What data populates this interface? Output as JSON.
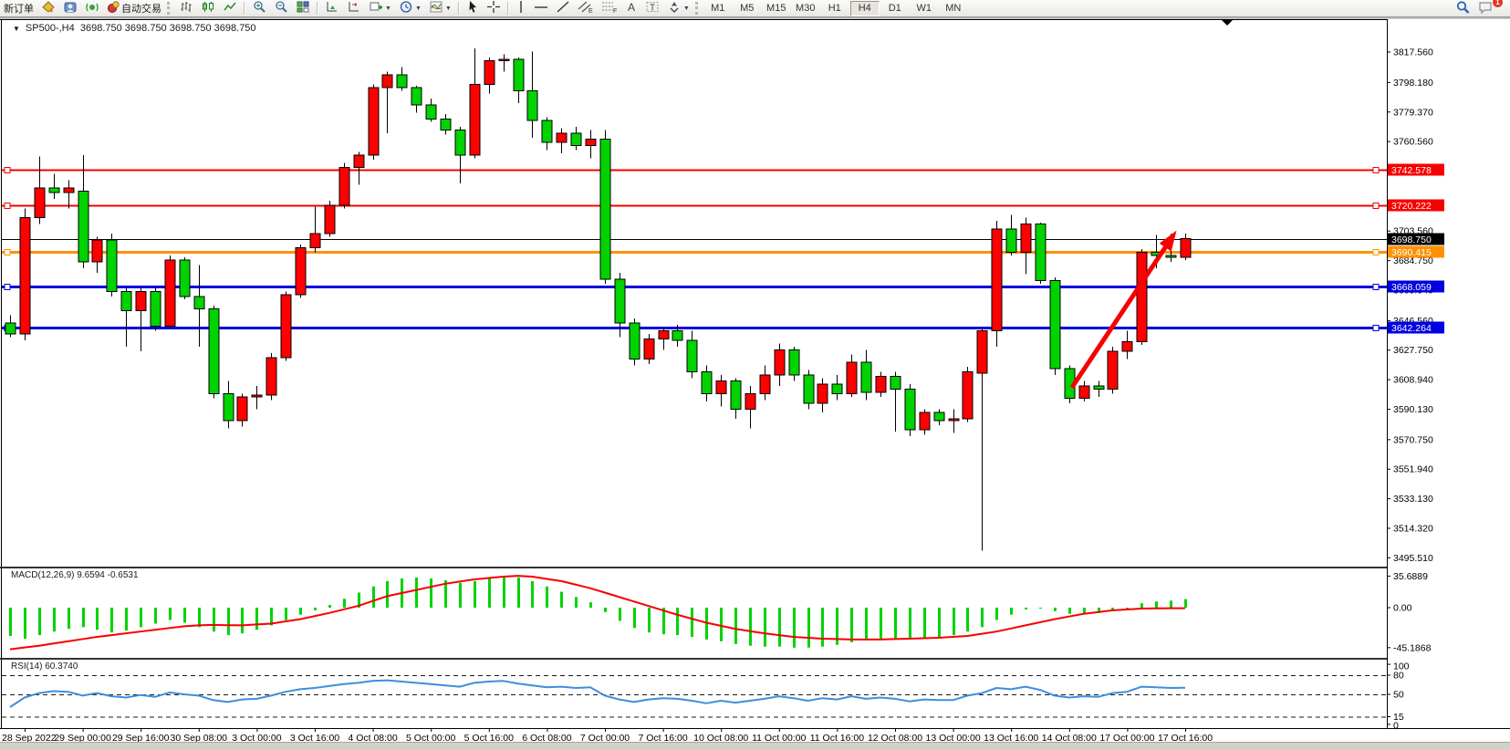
{
  "toolbar": {
    "new_order": "新订单",
    "auto_trading": "自动交易",
    "timeframes": [
      "M1",
      "M5",
      "M15",
      "M30",
      "H1",
      "H4",
      "D1",
      "W1",
      "MN"
    ],
    "active_timeframe": "H4",
    "notification_badge": "1",
    "icons": [
      "bucket-icon",
      "metaquotes-icon",
      "signal-icon",
      "autotrade-icon",
      "bars-chart-icon",
      "candles-chart-icon",
      "line-chart-icon",
      "zoom-in-icon",
      "zoom-out-icon",
      "tile-windows-icon",
      "arrange-charts-icon",
      "arrange-charts-alt-icon",
      "new-chart-icon",
      "period-clock-icon",
      "indicators-icon",
      "cursor-icon",
      "crosshair-icon",
      "vertical-line-icon",
      "horizontal-line-icon",
      "trendline-icon",
      "channel-icon",
      "fibonacci-icon",
      "text-icon",
      "label-icon",
      "shapes-icon",
      "search-icon",
      "chat-icon"
    ]
  },
  "chart": {
    "symbol_period": "SP500-,H4",
    "ohlc_text": "3698.750 3698.750 3698.750 3698.750",
    "collapse_arrow": "▼",
    "macd_label": "MACD(12,26,9) 9.6594 -0.6531",
    "rsi_label": "RSI(14) 60.3740"
  },
  "chart_data": {
    "type": "candlestick",
    "symbol": "SP500-,H4",
    "current_price": 3698.75,
    "bull_color": "#FF0000",
    "bear_color": "#00D300",
    "price_axis_range": [
      3490.5,
      3837.9
    ],
    "grid": false,
    "time_labels": [
      "28 Sep 2022",
      "29 Sep 00:00",
      "29 Sep 16:00",
      "30 Sep 08:00",
      "3 Oct 00:00",
      "3 Oct 16:00",
      "4 Oct 08:00",
      "5 Oct 00:00",
      "5 Oct 16:00",
      "6 Oct 08:00",
      "7 Oct 00:00",
      "7 Oct 16:00",
      "10 Oct 08:00",
      "11 Oct 00:00",
      "11 Oct 16:00",
      "12 Oct 08:00",
      "13 Oct 00:00",
      "13 Oct 16:00",
      "14 Oct 08:00",
      "17 Oct 00:00",
      "17 Oct 16:00"
    ],
    "price_scale_ticks": [
      "3817.560",
      "3798.180",
      "3779.370",
      "3760.560",
      "3703.560",
      "3684.750",
      "3665.940",
      "3646.560",
      "3627.750",
      "3608.940",
      "3590.130",
      "3570.750",
      "3551.940",
      "3533.130",
      "3514.320",
      "3495.510"
    ],
    "price_badges": [
      {
        "text": "3742.578",
        "price": 3742.578,
        "bg": "#f60000",
        "fg": "#ffffff"
      },
      {
        "text": "3720.222",
        "price": 3720.222,
        "bg": "#f60000",
        "fg": "#ffffff"
      },
      {
        "text": "3698.750",
        "price": 3698.75,
        "bg": "#000000",
        "fg": "#ffffff"
      },
      {
        "text": "3690.415",
        "price": 3690.415,
        "bg": "#ff9100",
        "fg": "#ffffff"
      },
      {
        "text": "3668.059",
        "price": 3668.059,
        "bg": "#0000e0",
        "fg": "#ffffff"
      },
      {
        "text": "3642.264",
        "price": 3642.264,
        "bg": "#0000e0",
        "fg": "#ffffff"
      }
    ],
    "hlines": [
      {
        "price": 3742.578,
        "color": "#f60000",
        "width": 2
      },
      {
        "price": 3720.222,
        "color": "#f60000",
        "width": 2
      },
      {
        "price": 3698.75,
        "color": "#000000",
        "width": 1
      },
      {
        "price": 3690.415,
        "color": "#ff9100",
        "width": 3
      },
      {
        "price": 3668.059,
        "color": "#0000e0",
        "width": 3
      },
      {
        "price": 3642.264,
        "color": "#0000e0",
        "width": 3
      }
    ],
    "candles_ohlc": [
      [
        3645,
        3650,
        3636,
        3638
      ],
      [
        3638,
        3718,
        3634,
        3712
      ],
      [
        3712,
        3751,
        3708,
        3731
      ],
      [
        3731,
        3740,
        3724,
        3728
      ],
      [
        3728,
        3736,
        3718,
        3731
      ],
      [
        3729,
        3752,
        3680,
        3684
      ],
      [
        3684,
        3700,
        3677,
        3698
      ],
      [
        3698,
        3702,
        3662,
        3665
      ],
      [
        3665,
        3667,
        3630,
        3653
      ],
      [
        3653,
        3667,
        3627,
        3665
      ],
      [
        3665,
        3668,
        3640,
        3643
      ],
      [
        3643,
        3688,
        3641,
        3685
      ],
      [
        3685,
        3687,
        3660,
        3662
      ],
      [
        3662,
        3682,
        3630,
        3654
      ],
      [
        3654,
        3656,
        3597,
        3600
      ],
      [
        3600,
        3608,
        3578,
        3583
      ],
      [
        3583,
        3600,
        3579,
        3598
      ],
      [
        3598,
        3605,
        3590,
        3599
      ],
      [
        3599,
        3626,
        3596,
        3623
      ],
      [
        3623,
        3665,
        3621,
        3663
      ],
      [
        3663,
        3695,
        3661,
        3693
      ],
      [
        3693,
        3719,
        3690,
        3702
      ],
      [
        3702,
        3723,
        3700,
        3720
      ],
      [
        3720,
        3747,
        3718,
        3744
      ],
      [
        3744,
        3754,
        3733,
        3752
      ],
      [
        3752,
        3797,
        3749,
        3795
      ],
      [
        3795,
        3805,
        3766,
        3803
      ],
      [
        3803,
        3808,
        3793,
        3795
      ],
      [
        3795,
        3796,
        3779,
        3784
      ],
      [
        3784,
        3788,
        3773,
        3775
      ],
      [
        3775,
        3778,
        3765,
        3768
      ],
      [
        3768,
        3770,
        3734,
        3752
      ],
      [
        3752,
        3820,
        3750,
        3797
      ],
      [
        3797,
        3814,
        3791,
        3812
      ],
      [
        3812,
        3816,
        3805,
        3813
      ],
      [
        3813,
        3814,
        3785,
        3793
      ],
      [
        3793,
        3818,
        3763,
        3774
      ],
      [
        3774,
        3776,
        3755,
        3760
      ],
      [
        3760,
        3769,
        3753,
        3766
      ],
      [
        3766,
        3770,
        3755,
        3758
      ],
      [
        3758,
        3768,
        3750,
        3762
      ],
      [
        3762,
        3768,
        3670,
        3673
      ],
      [
        3673,
        3677,
        3636,
        3645
      ],
      [
        3645,
        3648,
        3618,
        3622
      ],
      [
        3622,
        3638,
        3619,
        3635
      ],
      [
        3635,
        3642,
        3628,
        3640
      ],
      [
        3640,
        3644,
        3630,
        3634
      ],
      [
        3634,
        3640,
        3610,
        3614
      ],
      [
        3614,
        3618,
        3595,
        3600
      ],
      [
        3600,
        3612,
        3592,
        3608
      ],
      [
        3608,
        3610,
        3584,
        3590
      ],
      [
        3590,
        3605,
        3578,
        3600
      ],
      [
        3600,
        3618,
        3596,
        3612
      ],
      [
        3612,
        3632,
        3605,
        3628
      ],
      [
        3628,
        3630,
        3608,
        3612
      ],
      [
        3612,
        3615,
        3590,
        3594
      ],
      [
        3594,
        3610,
        3588,
        3606
      ],
      [
        3606,
        3612,
        3596,
        3600
      ],
      [
        3600,
        3625,
        3598,
        3620
      ],
      [
        3620,
        3628,
        3596,
        3601
      ],
      [
        3601,
        3614,
        3598,
        3611
      ],
      [
        3611,
        3614,
        3576,
        3603
      ],
      [
        3603,
        3606,
        3573,
        3577
      ],
      [
        3577,
        3590,
        3574,
        3588
      ],
      [
        3588,
        3590,
        3580,
        3583
      ],
      [
        3583,
        3590,
        3575,
        3584
      ],
      [
        3584,
        3617,
        3582,
        3614
      ],
      [
        3613,
        3642,
        3500,
        3640
      ],
      [
        3640,
        3710,
        3630,
        3705
      ],
      [
        3705,
        3714,
        3688,
        3690
      ],
      [
        3690,
        3712,
        3676,
        3708
      ],
      [
        3708,
        3709,
        3670,
        3672
      ],
      [
        3672,
        3674,
        3612,
        3616
      ],
      [
        3616,
        3618,
        3594,
        3597
      ],
      [
        3597,
        3608,
        3595,
        3605
      ],
      [
        3605,
        3608,
        3598,
        3603
      ],
      [
        3603,
        3630,
        3600,
        3627
      ],
      [
        3627,
        3640,
        3622,
        3633
      ],
      [
        3633,
        3692,
        3631,
        3690
      ],
      [
        3690,
        3701,
        3680,
        3688
      ],
      [
        3688,
        3702,
        3684,
        3687
      ],
      [
        3687,
        3702,
        3685,
        3698.75
      ]
    ],
    "indicators": [
      {
        "name": "MACD(12,26,9)",
        "values_label": "9.6594 -0.6531",
        "scale_ticks": [
          {
            "text": "35.6889",
            "value": 35.6889
          },
          {
            "text": "0.00",
            "value": 0
          },
          {
            "text": "-45.1868",
            "value": -45.1868
          }
        ],
        "histogram_color": "#00D300",
        "signal_color": "#f60000",
        "histogram": [
          -32,
          -35,
          -31,
          -27,
          -24,
          -22,
          -25,
          -28,
          -26,
          -22,
          -18,
          -14,
          -17,
          -22,
          -27,
          -31,
          -29,
          -25,
          -20,
          -14,
          -8,
          -3,
          3,
          10,
          17,
          24,
          30,
          33,
          34,
          33,
          31,
          28,
          30,
          33,
          35.7,
          34,
          30,
          24,
          18,
          12,
          6,
          -5,
          -15,
          -23,
          -28,
          -30,
          -31,
          -33,
          -36,
          -38,
          -41,
          -43,
          -44,
          -44,
          -45.2,
          -45,
          -44,
          -42,
          -39,
          -37,
          -35,
          -35,
          -36,
          -35,
          -33,
          -31,
          -27,
          -22,
          -14,
          -8,
          -2,
          -1,
          -4,
          -7,
          -7,
          -6,
          -3,
          0,
          5,
          7,
          8,
          9.66
        ],
        "signal": [
          -47,
          -45,
          -43,
          -40.5,
          -38,
          -35.5,
          -33,
          -31,
          -29,
          -27,
          -25,
          -23,
          -21,
          -20,
          -19.5,
          -19.8,
          -20,
          -19,
          -18,
          -15.5,
          -13,
          -9.5,
          -6,
          -2,
          2,
          7.5,
          13,
          16.5,
          20,
          23.5,
          27,
          29.5,
          32,
          33.5,
          35,
          36,
          35,
          32.5,
          30,
          26,
          22,
          17,
          12,
          7,
          2,
          -3,
          -8,
          -12.5,
          -17,
          -20.5,
          -24,
          -26.5,
          -29,
          -31,
          -33,
          -34,
          -35,
          -35.5,
          -36,
          -36,
          -36,
          -35.5,
          -35,
          -34.5,
          -34,
          -33,
          -32,
          -29.5,
          -27,
          -23.5,
          -20,
          -16.5,
          -13,
          -10,
          -7,
          -5,
          -3,
          -2,
          -1,
          -0.8,
          -0.7,
          -0.65
        ]
      },
      {
        "name": "RSI(14)",
        "values_label": "60.3740",
        "scale_ticks": [
          {
            "text": "100",
            "value": 100
          },
          {
            "text": "80",
            "value": 80
          },
          {
            "text": "50",
            "value": 50
          },
          {
            "text": "15",
            "value": 15
          },
          {
            "text": "0",
            "value": 0
          }
        ],
        "levels": [
          80,
          50,
          15
        ],
        "line_color": "#3E8EDE",
        "line": [
          30,
          45,
          52,
          55,
          54,
          48,
          52,
          47,
          45,
          49,
          46,
          53,
          50,
          48,
          41,
          38,
          42,
          43,
          48,
          54,
          58,
          60,
          63,
          66,
          68,
          71,
          72,
          70,
          68,
          66,
          64,
          62,
          68,
          70,
          71,
          67,
          64,
          61,
          62,
          60,
          61,
          48,
          42,
          38,
          42,
          44,
          43,
          40,
          36,
          40,
          37,
          40,
          43,
          47,
          44,
          40,
          44,
          42,
          47,
          43,
          45,
          43,
          39,
          42,
          41,
          41,
          48,
          52,
          60,
          58,
          62,
          57,
          48,
          45,
          47,
          46,
          52,
          54,
          62,
          61,
          60,
          60.37
        ]
      }
    ],
    "annotations": [
      {
        "type": "arrow",
        "color": "#f60000",
        "from_index": 73.2,
        "from_price": 3604,
        "to_index": 80.2,
        "to_price": 3701
      }
    ]
  }
}
